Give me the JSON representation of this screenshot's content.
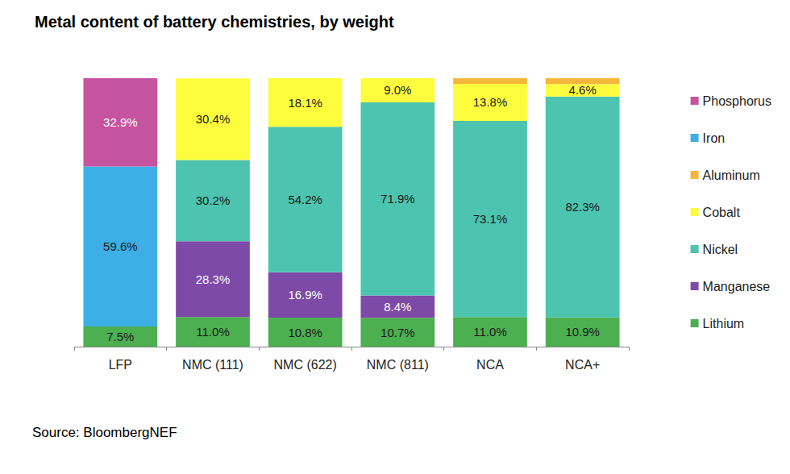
{
  "chart_data": {
    "type": "bar",
    "title": "Metal content of battery chemistries, by weight",
    "annotation": "Source: BloombergNEF",
    "categories": [
      "LFP",
      "NMC (111)",
      "NMC (622)",
      "NMC (811)",
      "NCA",
      "NCA+"
    ],
    "stacked": true,
    "data_labels": true,
    "legend": "right",
    "grid": false,
    "tick_labels": "x",
    "ylim": [
      0,
      100
    ],
    "series": [
      {
        "name": "Lithium",
        "color": "#4caf50",
        "values": [
          7.5,
          11.0,
          10.8,
          10.7,
          11.0,
          10.9
        ],
        "value_labels": [
          "7.5%",
          "11.0%",
          "10.8%",
          "10.7%",
          "11.0%",
          "10.9%"
        ]
      },
      {
        "name": "Manganese",
        "color": "#7e4aa8",
        "values": [
          null,
          28.3,
          16.9,
          8.4,
          null,
          null
        ],
        "value_labels": [
          null,
          "28.3%",
          "16.9%",
          "8.4%",
          null,
          null
        ]
      },
      {
        "name": "Nickel",
        "color": "#4cc4b0",
        "values": [
          null,
          30.2,
          54.2,
          71.9,
          73.1,
          82.3
        ],
        "value_labels": [
          null,
          "30.2%",
          "54.2%",
          "71.9%",
          "73.1%",
          "82.3%"
        ]
      },
      {
        "name": "Cobalt",
        "color": "#fdfd3d",
        "values": [
          null,
          30.4,
          18.1,
          9.0,
          13.8,
          4.6
        ],
        "value_labels": [
          null,
          "30.4%",
          "18.1%",
          "9.0%",
          "13.8%",
          "4.6%"
        ]
      },
      {
        "name": "Aluminum",
        "color": "#f5b63c",
        "values": [
          null,
          null,
          null,
          null,
          2.1,
          2.2
        ],
        "value_labels": [
          null,
          null,
          null,
          null,
          null,
          null
        ]
      },
      {
        "name": "Iron",
        "color": "#3cafe6",
        "values": [
          59.6,
          null,
          null,
          null,
          null,
          null
        ],
        "value_labels": [
          "59.6%",
          null,
          null,
          null,
          null,
          null
        ]
      },
      {
        "name": "Phosphorus",
        "color": "#c6539f",
        "values": [
          32.9,
          null,
          null,
          null,
          null,
          null
        ],
        "value_labels": [
          "32.9%",
          null,
          null,
          null,
          null,
          null
        ]
      }
    ]
  }
}
